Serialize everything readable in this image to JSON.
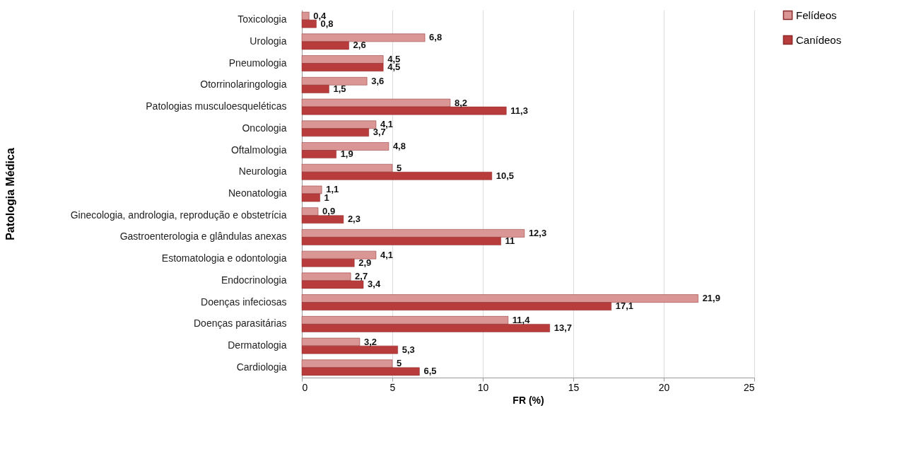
{
  "chart_data": {
    "type": "bar",
    "orientation": "horizontal",
    "xlabel": "FR (%)",
    "ylabel": "Patologia Médica",
    "categories": [
      "Toxicologia",
      "Urologia",
      "Pneumologia",
      "Otorrinolaringologia",
      "Patologias musculoesqueléticas",
      "Oncologia",
      "Oftalmologia",
      "Neurologia",
      "Neonatologia",
      "Ginecologia, andrologia, reprodução e obstetrícia",
      "Gastroenterologia e glândulas anexas",
      "Estomatologia  e odontologia",
      "Endocrinologia",
      "Doenças infeciosas",
      "Doenças parasitárias",
      "Dermatologia",
      "Cardiologia"
    ],
    "series": [
      {
        "name": "Felídeos",
        "color": "#d99694",
        "values": [
          0.4,
          6.8,
          4.5,
          3.6,
          8.2,
          4.1,
          4.8,
          5,
          1.1,
          0.9,
          12.3,
          4.1,
          2.7,
          21.9,
          11.4,
          3.2,
          5
        ],
        "value_labels": [
          "0,4",
          "6,8",
          "4,5",
          "3,6",
          "8,2",
          "4,1",
          "4,8",
          "5",
          "1,1",
          "0,9",
          "12,3",
          "4,1",
          "2,7",
          "21,9",
          "11,4",
          "3,2",
          "5"
        ]
      },
      {
        "name": "Canídeos",
        "color": "#b83c3c",
        "values": [
          0.8,
          2.6,
          4.5,
          1.5,
          11.3,
          3.7,
          1.9,
          10.5,
          1,
          2.3,
          11,
          2.9,
          3.4,
          17.1,
          13.7,
          5.3,
          6.5
        ],
        "value_labels": [
          "0,8",
          "2,6",
          "4,5",
          "1,5",
          "11,3",
          "3,7",
          "1,9",
          "10,5",
          "1",
          "2,3",
          "11",
          "2,9",
          "3,4",
          "17,1",
          "13,7",
          "5,3",
          "6,5"
        ]
      }
    ],
    "xlim": [
      0,
      25
    ],
    "xticks": [
      0,
      5,
      10,
      15,
      20,
      25
    ],
    "grid": "x",
    "legend": "right"
  }
}
